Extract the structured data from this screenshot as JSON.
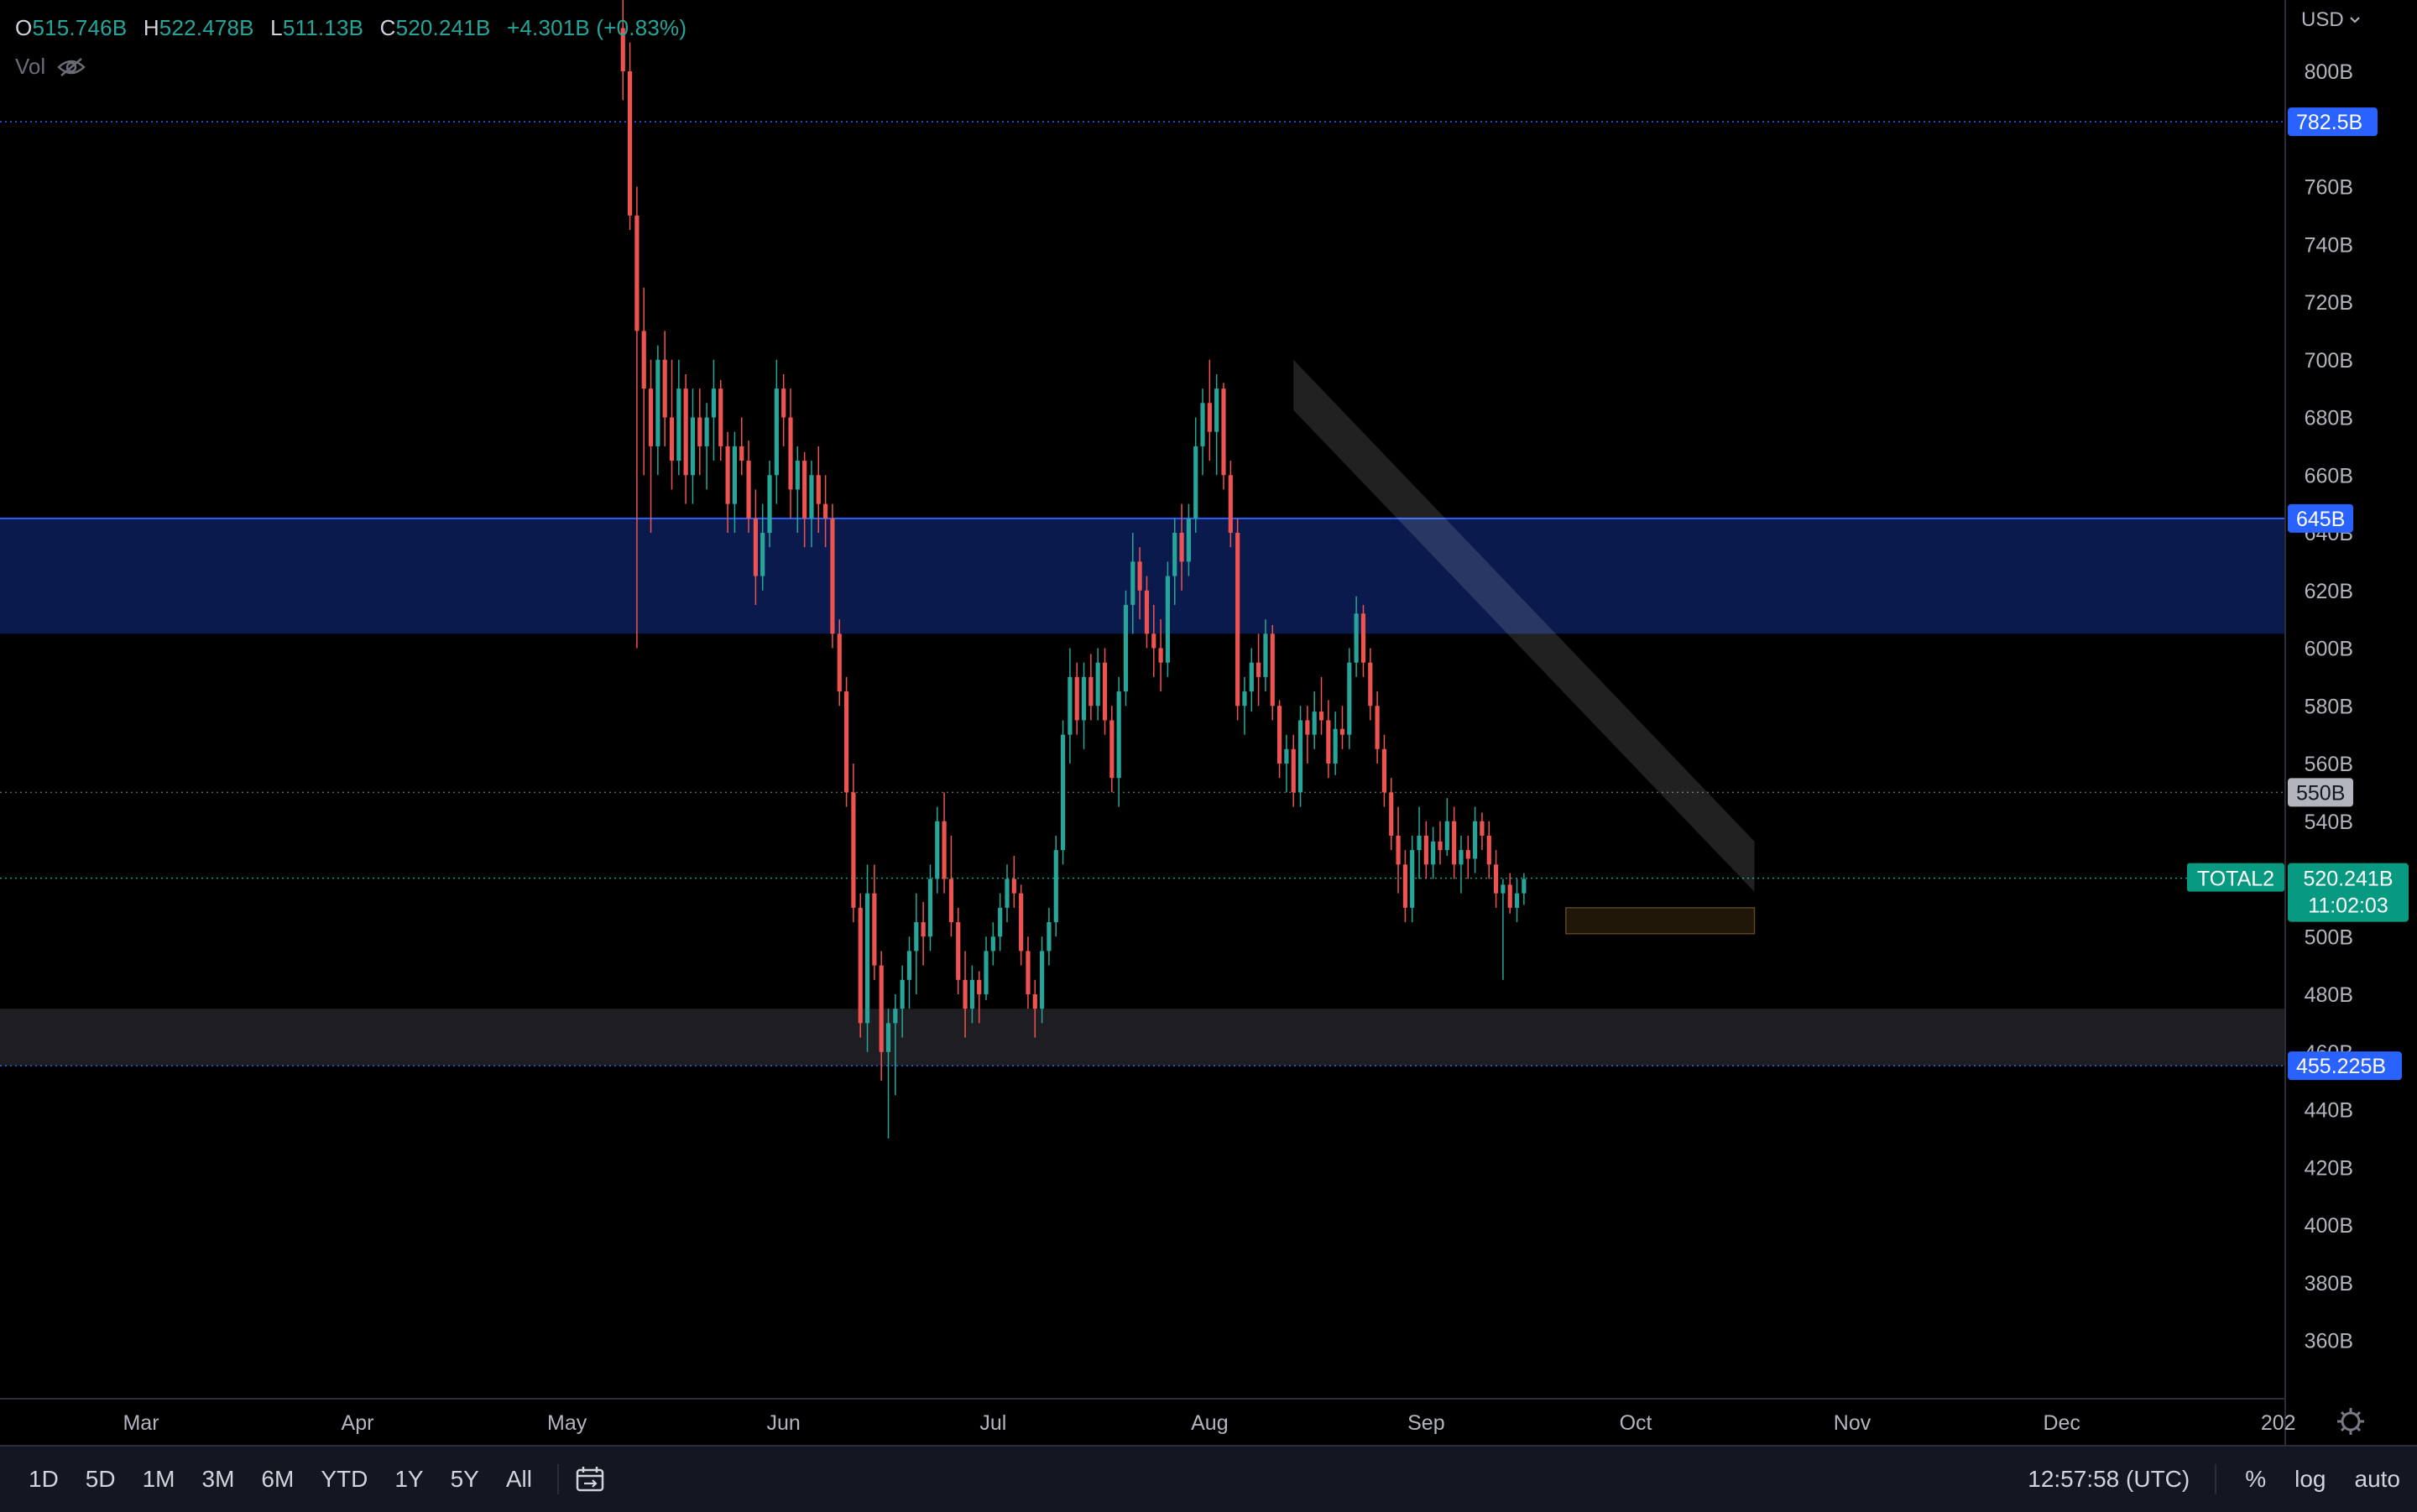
{
  "legend": {
    "o_label": "O",
    "o_value": "515.746B",
    "h_label": "H",
    "h_value": "522.478B",
    "l_label": "L",
    "l_value": "511.13B",
    "c_label": "C",
    "c_value": "520.241B",
    "change": "+4.301B (+0.83%)",
    "vol_label": "Vol"
  },
  "colors": {
    "up": "#26a69a",
    "down": "#ef5350",
    "zone_blue": "#0a1a4d",
    "zone_gray": "#1e1e22",
    "badge_blue": "#2962ff",
    "badge_teal": "#089981"
  },
  "icons": {
    "vol_hidden": "eye-off-icon",
    "date_range": "calendar-range-icon",
    "settings": "gear-icon",
    "currency_menu": "chevron-down-icon"
  },
  "price_axis": {
    "currency": "USD",
    "ticks": [
      "800B",
      "760B",
      "740B",
      "720B",
      "700B",
      "680B",
      "660B",
      "640B",
      "620B",
      "600B",
      "580B",
      "560B",
      "540B",
      "500B",
      "480B",
      "460B",
      "440B",
      "420B",
      "400B",
      "380B",
      "360B"
    ],
    "badges": [
      {
        "label": "782.5B",
        "style": "blue"
      },
      {
        "label": "645B",
        "style": "blue"
      },
      {
        "label": "550B",
        "style": "gray"
      },
      {
        "label": "455.225B",
        "style": "blue"
      }
    ],
    "symbol_badge": "TOTAL2",
    "last_price": "520.241B",
    "countdown": "11:02:03"
  },
  "time_axis": {
    "labels": [
      "Mar",
      "Apr",
      "May",
      "Jun",
      "Jul",
      "Aug",
      "Sep",
      "Oct",
      "Nov",
      "Dec",
      "202"
    ]
  },
  "bottom_bar": {
    "ranges": [
      "1D",
      "5D",
      "1M",
      "3M",
      "6M",
      "YTD",
      "1Y",
      "5Y",
      "All"
    ],
    "clock": "12:57:58 (UTC)",
    "percent": "%",
    "log": "log",
    "auto": "auto"
  },
  "chart_data": {
    "type": "candlestick",
    "symbol": "TOTAL2",
    "ylim": [
      345,
      820
    ],
    "y_unit": "B USD",
    "x_range": [
      "2022-02-15",
      "2023-01-01"
    ],
    "levels": [
      782.5,
      645,
      550,
      520.241,
      455.225
    ],
    "zones": [
      {
        "from": 605,
        "to": 645,
        "color": "blue"
      },
      {
        "from": 455.225,
        "to": 475,
        "color": "gray"
      }
    ],
    "drawings": [
      {
        "type": "descending-channel",
        "from": [
          "2022-08-13",
          700
        ],
        "to": [
          "2022-10-18",
          533
        ]
      },
      {
        "type": "range-box",
        "from": [
          "2022-09-21",
          510
        ],
        "to": [
          "2022-10-18",
          501
        ]
      }
    ],
    "candles_start": "2022-05-09",
    "candles": [
      [
        815,
        830,
        790,
        800
      ],
      [
        800,
        810,
        745,
        750
      ],
      [
        750,
        760,
        600,
        710
      ],
      [
        710,
        725,
        660,
        690
      ],
      [
        690,
        700,
        640,
        670
      ],
      [
        670,
        705,
        660,
        700
      ],
      [
        700,
        710,
        670,
        680
      ],
      [
        680,
        700,
        655,
        665
      ],
      [
        665,
        700,
        660,
        690
      ],
      [
        690,
        695,
        650,
        660
      ],
      [
        660,
        690,
        650,
        680
      ],
      [
        680,
        690,
        660,
        670
      ],
      [
        670,
        685,
        655,
        680
      ],
      [
        680,
        700,
        665,
        690
      ],
      [
        690,
        693,
        665,
        670
      ],
      [
        670,
        675,
        640,
        650
      ],
      [
        650,
        675,
        640,
        670
      ],
      [
        670,
        680,
        660,
        665
      ],
      [
        665,
        672,
        640,
        645
      ],
      [
        645,
        655,
        615,
        625
      ],
      [
        625,
        650,
        620,
        640
      ],
      [
        640,
        665,
        635,
        660
      ],
      [
        660,
        700,
        650,
        690
      ],
      [
        690,
        695,
        670,
        680
      ],
      [
        680,
        690,
        645,
        655
      ],
      [
        655,
        670,
        640,
        665
      ],
      [
        665,
        668,
        635,
        645
      ],
      [
        645,
        665,
        635,
        660
      ],
      [
        660,
        670,
        640,
        650
      ],
      [
        650,
        660,
        635,
        645
      ],
      [
        645,
        650,
        600,
        605
      ],
      [
        605,
        610,
        580,
        585
      ],
      [
        585,
        590,
        545,
        550
      ],
      [
        550,
        560,
        505,
        510
      ],
      [
        510,
        515,
        465,
        470
      ],
      [
        470,
        525,
        460,
        515
      ],
      [
        515,
        525,
        485,
        490
      ],
      [
        490,
        495,
        450,
        460
      ],
      [
        460,
        475,
        430,
        470
      ],
      [
        470,
        480,
        445,
        475
      ],
      [
        475,
        490,
        465,
        485
      ],
      [
        485,
        500,
        475,
        495
      ],
      [
        495,
        515,
        480,
        505
      ],
      [
        505,
        512,
        490,
        500
      ],
      [
        500,
        525,
        495,
        520
      ],
      [
        520,
        545,
        515,
        540
      ],
      [
        540,
        550,
        515,
        520
      ],
      [
        520,
        535,
        500,
        505
      ],
      [
        505,
        510,
        480,
        485
      ],
      [
        485,
        495,
        465,
        475
      ],
      [
        475,
        490,
        470,
        485
      ],
      [
        485,
        488,
        470,
        480
      ],
      [
        480,
        500,
        478,
        495
      ],
      [
        495,
        505,
        490,
        500
      ],
      [
        500,
        515,
        495,
        510
      ],
      [
        510,
        525,
        505,
        520
      ],
      [
        520,
        528,
        510,
        515
      ],
      [
        515,
        518,
        490,
        495
      ],
      [
        495,
        500,
        475,
        480
      ],
      [
        480,
        485,
        465,
        475
      ],
      [
        475,
        500,
        470,
        495
      ],
      [
        495,
        510,
        490,
        505
      ],
      [
        505,
        535,
        500,
        530
      ],
      [
        530,
        575,
        525,
        570
      ],
      [
        570,
        600,
        560,
        590
      ],
      [
        590,
        595,
        570,
        575
      ],
      [
        575,
        595,
        565,
        590
      ],
      [
        590,
        598,
        575,
        580
      ],
      [
        580,
        600,
        575,
        595
      ],
      [
        595,
        600,
        570,
        575
      ],
      [
        575,
        580,
        550,
        555
      ],
      [
        555,
        590,
        545,
        585
      ],
      [
        585,
        620,
        580,
        615
      ],
      [
        615,
        640,
        605,
        630
      ],
      [
        630,
        635,
        610,
        620
      ],
      [
        620,
        625,
        600,
        605
      ],
      [
        605,
        615,
        590,
        600
      ],
      [
        600,
        610,
        585,
        595
      ],
      [
        595,
        630,
        590,
        625
      ],
      [
        625,
        645,
        615,
        640
      ],
      [
        640,
        650,
        620,
        630
      ],
      [
        630,
        650,
        625,
        645
      ],
      [
        645,
        680,
        640,
        670
      ],
      [
        670,
        690,
        660,
        685
      ],
      [
        685,
        700,
        665,
        675
      ],
      [
        675,
        695,
        660,
        690
      ],
      [
        690,
        692,
        655,
        660
      ],
      [
        660,
        665,
        635,
        640
      ],
      [
        640,
        645,
        575,
        580
      ],
      [
        580,
        590,
        570,
        585
      ],
      [
        585,
        600,
        578,
        595
      ],
      [
        595,
        605,
        580,
        590
      ],
      [
        590,
        610,
        585,
        605
      ],
      [
        605,
        608,
        575,
        580
      ],
      [
        580,
        582,
        555,
        560
      ],
      [
        560,
        570,
        550,
        565
      ],
      [
        565,
        570,
        545,
        550
      ],
      [
        550,
        580,
        545,
        575
      ],
      [
        575,
        580,
        560,
        570
      ],
      [
        570,
        585,
        565,
        578
      ],
      [
        578,
        590,
        570,
        575
      ],
      [
        575,
        582,
        555,
        560
      ],
      [
        560,
        578,
        556,
        572
      ],
      [
        572,
        580,
        565,
        570
      ],
      [
        570,
        600,
        565,
        595
      ],
      [
        595,
        618,
        590,
        612
      ],
      [
        612,
        615,
        590,
        595
      ],
      [
        595,
        600,
        575,
        580
      ],
      [
        580,
        585,
        560,
        565
      ],
      [
        565,
        570,
        545,
        550
      ],
      [
        550,
        555,
        530,
        535
      ],
      [
        535,
        545,
        515,
        525
      ],
      [
        525,
        530,
        505,
        510
      ],
      [
        510,
        535,
        505,
        530
      ],
      [
        530,
        545,
        520,
        535
      ],
      [
        535,
        540,
        520,
        525
      ],
      [
        525,
        538,
        520,
        533
      ],
      [
        533,
        540,
        525,
        530
      ],
      [
        530,
        548,
        528,
        540
      ],
      [
        540,
        545,
        520,
        525
      ],
      [
        525,
        535,
        515,
        530
      ],
      [
        530,
        535,
        520,
        527
      ],
      [
        527,
        545,
        522,
        540
      ],
      [
        540,
        543,
        530,
        535
      ],
      [
        535,
        540,
        520,
        525
      ],
      [
        525,
        530,
        510,
        515
      ],
      [
        515,
        520,
        485,
        518
      ],
      [
        518,
        522,
        508,
        510
      ],
      [
        510,
        520,
        505,
        515
      ],
      [
        515,
        522,
        511,
        520
      ]
    ]
  }
}
